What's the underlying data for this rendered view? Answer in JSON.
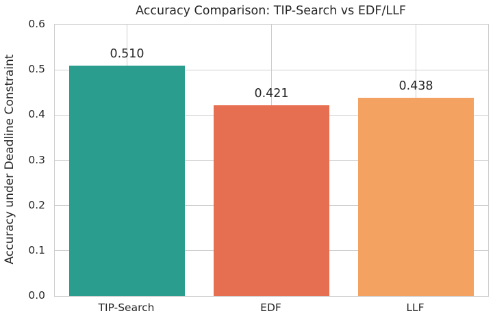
{
  "chart_data": {
    "type": "bar",
    "title": "Accuracy Comparison: TIP-Search vs EDF/LLF",
    "ylabel": "Accuracy under Deadline Constraint",
    "xlabel": "",
    "categories": [
      "TIP-Search",
      "EDF",
      "LLF"
    ],
    "values": [
      0.51,
      0.421,
      0.438
    ],
    "bar_labels": [
      "0.510",
      "0.421",
      "0.438"
    ],
    "bar_colors": [
      "#2a9d8f",
      "#e76f51",
      "#f4a261"
    ],
    "ylim": [
      0.0,
      0.6
    ],
    "yticks": [
      0.0,
      0.1,
      0.2,
      0.3,
      0.4,
      0.5,
      0.6
    ],
    "ytick_labels": [
      "0.0",
      "0.1",
      "0.2",
      "0.3",
      "0.4",
      "0.5",
      "0.6"
    ],
    "grid": "on",
    "legend": "none",
    "bar_width_fraction": 0.8,
    "colors": {
      "grid": "#cccccc",
      "text": "#262626",
      "background": "#ffffff"
    }
  }
}
